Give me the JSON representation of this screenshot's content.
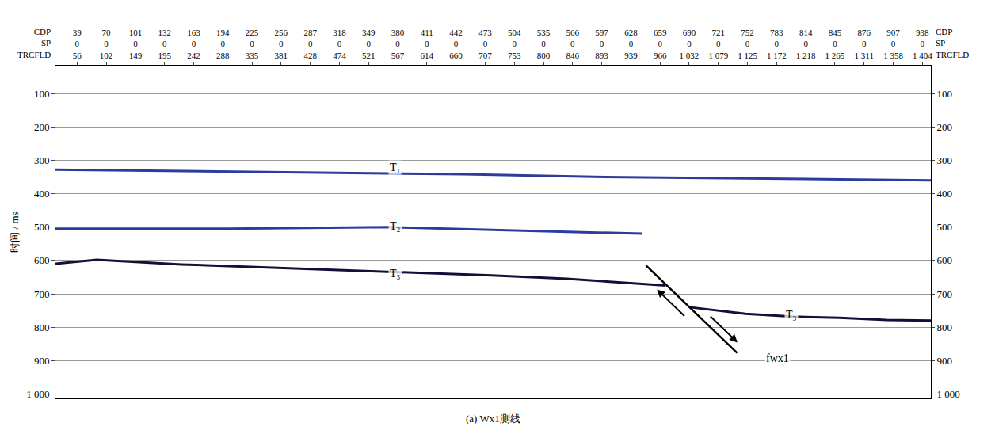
{
  "chart_data": {
    "type": "line",
    "caption": "(a) Wx1测线",
    "ylabel": "时间 / ms",
    "tick_row_names": [
      "CDP",
      "SP",
      "TRCFLD"
    ],
    "xlim": [
      16,
      947
    ],
    "xticks": [
      39,
      70,
      101,
      132,
      163,
      194,
      225,
      256,
      287,
      318,
      349,
      380,
      411,
      442,
      473,
      504,
      535,
      566,
      597,
      628,
      659,
      690,
      721,
      752,
      783,
      814,
      845,
      876,
      907,
      938
    ],
    "sp_labels": [
      "0",
      "0",
      "0",
      "0",
      "0",
      "0",
      "0",
      "0",
      "0",
      "0",
      "0",
      "0",
      "0",
      "0",
      "0",
      "0",
      "0",
      "0",
      "0",
      "0",
      "0",
      "0",
      "0",
      "0",
      "0",
      "0",
      "0",
      "0",
      "0",
      "0"
    ],
    "trcfld_labels": [
      "56",
      "102",
      "149",
      "195",
      "242",
      "288",
      "335",
      "381",
      "428",
      "474",
      "521",
      "567",
      "614",
      "660",
      "707",
      "753",
      "800",
      "846",
      "893",
      "939",
      "966",
      "1 032",
      "1 079",
      "1 125",
      "1 172",
      "1 218",
      "1 265",
      "1 311",
      "1 358",
      "1 404"
    ],
    "ylim": [
      1013,
      17
    ],
    "yticks": [
      100,
      200,
      300,
      400,
      500,
      600,
      700,
      800,
      900,
      {
        "value": 1000,
        "label": "1 000"
      }
    ],
    "grid": true,
    "series": [
      {
        "color": "#2b3c9e",
        "x": [
          16,
          150,
          300,
          450,
          600,
          750,
          947
        ],
        "values": [
          328,
          332,
          338,
          342,
          350,
          355,
          360
        ]
      },
      {
        "color": "#2b3c9e",
        "x": [
          16,
          200,
          370,
          500,
          640
        ],
        "values": [
          505,
          505,
          500,
          510,
          520
        ]
      },
      {
        "color": "#10103a",
        "x": [
          16,
          60,
          150,
          250,
          370,
          480,
          560,
          665
        ],
        "values": [
          610,
          598,
          612,
          622,
          635,
          645,
          655,
          675
        ]
      },
      {
        "color": "#10103a",
        "x": [
          690,
          750,
          800,
          850,
          900,
          947
        ],
        "values": [
          740,
          760,
          768,
          772,
          778,
          780
        ]
      }
    ],
    "fault": {
      "color": "#000000",
      "x": [
        644,
        741
      ],
      "values": [
        615,
        877
      ]
    },
    "annotations": [
      {
        "text": "T₁",
        "x": 370,
        "y": 322
      },
      {
        "text": "T₂",
        "x": 370,
        "y": 497
      },
      {
        "text": "T₃",
        "x": 370,
        "y": 639
      },
      {
        "text": "T₃",
        "x": 791,
        "y": 763
      },
      {
        "text": "fwx1",
        "x": 770,
        "y": 893
      }
    ]
  }
}
